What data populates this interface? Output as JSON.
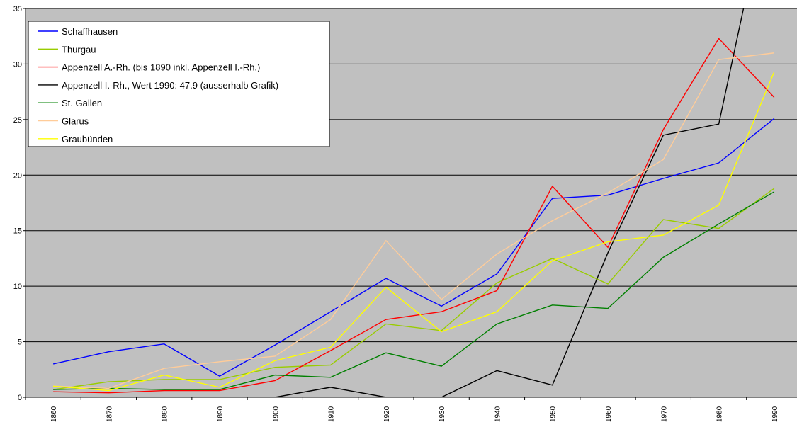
{
  "chart_data": {
    "type": "line",
    "categories": [
      "1860",
      "1870",
      "1880",
      "1890",
      "1900",
      "1910",
      "1920",
      "1930",
      "1940",
      "1950",
      "1960",
      "1970",
      "1980",
      "1990"
    ],
    "ylim": [
      0,
      35
    ],
    "yticks": [
      0,
      5,
      10,
      15,
      20,
      25,
      30,
      35
    ],
    "grid": true,
    "legend": "upper-left",
    "series": [
      {
        "name": "Schaffhausen",
        "color": "#0000ff",
        "values": [
          3.0,
          4.1,
          4.8,
          1.9,
          4.7,
          7.7,
          10.7,
          8.2,
          11.1,
          17.9,
          18.2,
          19.7,
          21.1,
          25.1
        ]
      },
      {
        "name": "Thurgau",
        "color": "#99cc00",
        "values": [
          0.7,
          1.4,
          1.6,
          1.6,
          2.7,
          2.9,
          6.6,
          6.0,
          10.3,
          12.5,
          10.2,
          16.0,
          15.2,
          18.8
        ]
      },
      {
        "name": "Appenzell A.-Rh. (bis 1890 inkl. Appenzell I.-Rh.)",
        "color": "#ff0000",
        "values": [
          0.5,
          0.4,
          0.6,
          0.6,
          1.5,
          4.2,
          7.0,
          7.7,
          9.6,
          19.0,
          13.5,
          24.1,
          32.3,
          27.0
        ]
      },
      {
        "name": "Appenzell I.-Rh., Wert 1990: 47.9 (ausserhalb Grafik)",
        "color": "#000000",
        "values": [
          null,
          null,
          null,
          null,
          0,
          0.9,
          0,
          0,
          2.4,
          1.1,
          13.0,
          23.6,
          24.6,
          47.9
        ]
      },
      {
        "name": "St. Gallen",
        "color": "#008000",
        "values": [
          0.7,
          0.8,
          0.7,
          0.7,
          2.0,
          1.8,
          4.0,
          2.8,
          6.6,
          8.3,
          8.0,
          12.6,
          15.6,
          18.5
        ]
      },
      {
        "name": "Glarus",
        "color": "#ffcc99",
        "values": [
          1.0,
          0.8,
          2.6,
          3.2,
          3.7,
          7.0,
          14.1,
          8.8,
          12.9,
          15.9,
          18.4,
          21.4,
          30.4,
          31.0
        ]
      },
      {
        "name": "Graubünden",
        "color": "#ffff00",
        "values": [
          1.0,
          0.6,
          2.0,
          0.9,
          3.3,
          4.5,
          9.9,
          5.9,
          7.7,
          12.3,
          14.0,
          14.6,
          17.3,
          29.3
        ]
      }
    ]
  }
}
